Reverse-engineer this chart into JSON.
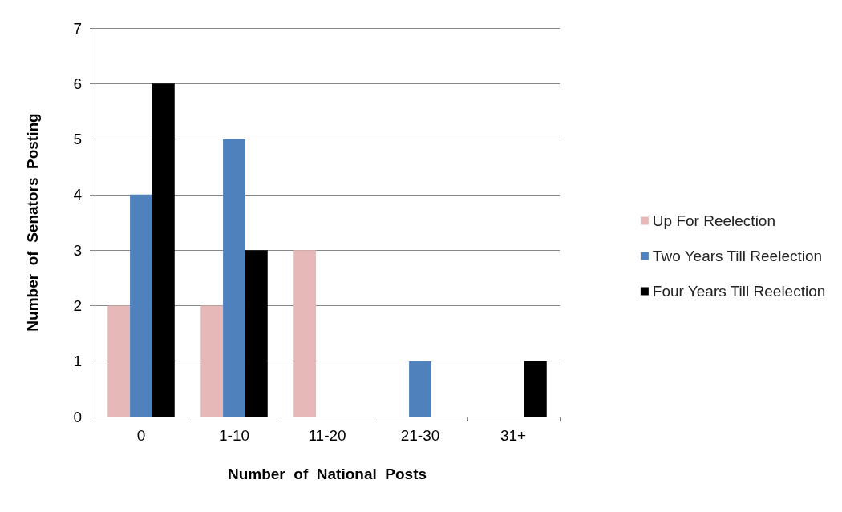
{
  "chart_data": {
    "type": "bar",
    "xlabel": "Number  of  National  Posts",
    "ylabel": "Number  of  Senators  Posting",
    "categories": [
      "0",
      "1-10",
      "11-20",
      "21-30",
      "31+"
    ],
    "series": [
      {
        "name": "Up For Reelection",
        "color": "#e6b9b8",
        "values": [
          2,
          2,
          3,
          0,
          0
        ]
      },
      {
        "name": "Two Years Till Reelection",
        "color": "#4f81bd",
        "values": [
          4,
          5,
          0,
          1,
          0
        ]
      },
      {
        "name": "Four Years Till Reelection",
        "color": "#000000",
        "values": [
          6,
          3,
          0,
          0,
          1
        ]
      }
    ],
    "ylim": [
      0,
      7
    ],
    "yticks": [
      0,
      1,
      2,
      3,
      4,
      5,
      6,
      7
    ],
    "grid": "y",
    "legend": "right"
  }
}
